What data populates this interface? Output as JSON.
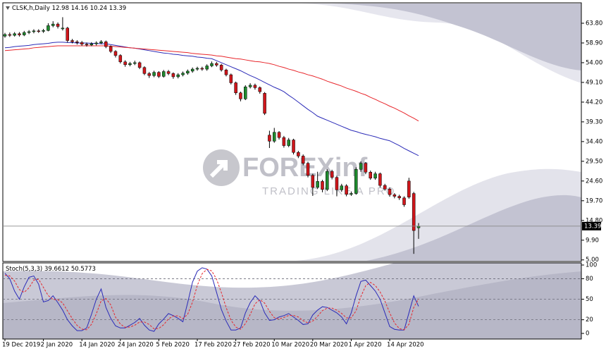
{
  "header": {
    "symbol": "CLSK,h,Daily"
  },
  "watermark": {
    "brand": "FOREXinf",
    "tagline": "TRADING LIKE A PRO"
  },
  "chart_data": [
    {
      "type": "candlestick",
      "up_color": "#1f8a2e",
      "down_color": "#d0161b",
      "categories": [
        "19 Dec 2019",
        null,
        null,
        null,
        null,
        null,
        null,
        null,
        "2 Jan 2020",
        null,
        null,
        null,
        null,
        null,
        null,
        null,
        "14 Jan 2020",
        null,
        null,
        null,
        null,
        null,
        null,
        null,
        "24 Jan 2020",
        null,
        null,
        null,
        null,
        null,
        null,
        null,
        "5 Feb 2020",
        null,
        null,
        null,
        null,
        null,
        null,
        null,
        "17 Feb 2020",
        null,
        null,
        null,
        null,
        null,
        null,
        null,
        "27 Feb 2020",
        null,
        null,
        null,
        null,
        null,
        null,
        null,
        "10 Mar 2020",
        null,
        null,
        null,
        null,
        null,
        null,
        null,
        "20 Mar 2020",
        null,
        null,
        null,
        null,
        null,
        null,
        null,
        "1 Apr 2020",
        null,
        null,
        null,
        null,
        null,
        null,
        null,
        "14 Apr 2020",
        null,
        null,
        null,
        null,
        null,
        null
      ],
      "ohlc": [
        [
          60.6,
          61.4,
          60.2,
          61.0
        ],
        [
          61.0,
          61.5,
          60.4,
          60.8
        ],
        [
          60.8,
          61.6,
          60.5,
          61.2
        ],
        [
          61.2,
          61.6,
          60.5,
          60.9
        ],
        [
          60.9,
          61.9,
          60.6,
          61.5
        ],
        [
          61.5,
          62.1,
          61.1,
          61.7
        ],
        [
          61.7,
          62.3,
          61.3,
          61.9
        ],
        [
          61.9,
          62.3,
          61.4,
          61.8
        ],
        [
          61.8,
          62.4,
          61.4,
          62.0
        ],
        [
          62.0,
          63.8,
          61.8,
          63.2
        ],
        [
          63.2,
          64.3,
          62.8,
          63.6
        ],
        [
          63.6,
          64.0,
          62.5,
          63.0
        ],
        [
          62.4,
          65.3,
          62.0,
          62.6
        ],
        [
          62.6,
          62.9,
          59.0,
          59.5
        ],
        [
          59.5,
          59.9,
          58.8,
          59.2
        ],
        [
          59.2,
          59.6,
          58.5,
          59.0
        ],
        [
          59.0,
          59.4,
          58.2,
          58.6
        ],
        [
          58.6,
          59.0,
          58.0,
          58.4
        ],
        [
          58.4,
          59.1,
          58.1,
          58.7
        ],
        [
          58.7,
          59.3,
          58.3,
          58.9
        ],
        [
          58.9,
          59.6,
          58.6,
          59.2
        ],
        [
          59.2,
          59.5,
          57.6,
          58.0
        ],
        [
          58.0,
          58.3,
          56.4,
          56.8
        ],
        [
          56.8,
          57.1,
          55.3,
          55.8
        ],
        [
          55.8,
          56.1,
          53.8,
          54.2
        ],
        [
          54.2,
          54.6,
          53.0,
          53.5
        ],
        [
          53.5,
          54.2,
          53.1,
          53.8
        ],
        [
          53.8,
          54.5,
          53.4,
          54.0
        ],
        [
          54.0,
          54.3,
          52.4,
          52.8
        ],
        [
          52.8,
          53.1,
          50.9,
          51.3
        ],
        [
          51.3,
          51.7,
          50.2,
          50.8
        ],
        [
          50.8,
          52.0,
          50.4,
          51.6
        ],
        [
          51.6,
          51.9,
          50.2,
          50.6
        ],
        [
          50.6,
          52.2,
          50.3,
          51.8
        ],
        [
          51.8,
          52.2,
          50.9,
          51.3
        ],
        [
          51.3,
          51.6,
          50.0,
          50.5
        ],
        [
          50.5,
          51.4,
          50.1,
          51.0
        ],
        [
          51.0,
          51.8,
          50.6,
          51.4
        ],
        [
          51.4,
          52.3,
          51.0,
          51.9
        ],
        [
          51.9,
          52.8,
          51.5,
          52.4
        ],
        [
          52.4,
          53.0,
          52.0,
          52.6
        ],
        [
          52.6,
          53.0,
          52.0,
          52.4
        ],
        [
          52.4,
          53.6,
          52.0,
          53.2
        ],
        [
          53.2,
          54.3,
          52.9,
          53.8
        ],
        [
          53.8,
          54.2,
          53.0,
          53.4
        ],
        [
          53.4,
          53.7,
          51.8,
          52.2
        ],
        [
          52.2,
          52.5,
          50.6,
          51.0
        ],
        [
          51.0,
          51.3,
          48.6,
          49.0
        ],
        [
          49.0,
          49.3,
          46.0,
          46.5
        ],
        [
          46.5,
          46.8,
          44.4,
          45.0
        ],
        [
          45.0,
          48.4,
          44.7,
          48.0
        ],
        [
          48.0,
          48.9,
          47.6,
          48.4
        ],
        [
          48.4,
          48.8,
          47.3,
          47.8
        ],
        [
          47.8,
          48.1,
          46.3,
          46.8
        ],
        [
          46.4,
          46.7,
          41.0,
          41.4
        ],
        [
          36.0,
          37.1,
          32.8,
          34.5
        ],
        [
          34.5,
          37.8,
          34.1,
          36.7
        ],
        [
          36.7,
          37.0,
          34.9,
          35.4
        ],
        [
          35.4,
          35.8,
          32.9,
          33.4
        ],
        [
          33.4,
          35.3,
          33.0,
          34.8
        ],
        [
          34.8,
          35.1,
          31.2,
          31.7
        ],
        [
          31.7,
          32.1,
          30.3,
          30.8
        ],
        [
          30.8,
          31.2,
          28.5,
          29.0
        ],
        [
          29.0,
          29.4,
          25.5,
          26.0
        ],
        [
          26.0,
          26.4,
          20.9,
          23.0
        ],
        [
          23.0,
          26.9,
          22.6,
          24.5
        ],
        [
          24.5,
          24.9,
          21.8,
          22.5
        ],
        [
          22.5,
          27.5,
          22.1,
          27.0
        ],
        [
          27.0,
          27.4,
          25.0,
          25.5
        ],
        [
          25.5,
          25.9,
          20.8,
          22.4
        ],
        [
          22.4,
          23.9,
          21.9,
          23.4
        ],
        [
          23.4,
          23.8,
          20.8,
          21.3
        ],
        [
          21.3,
          22.0,
          20.9,
          21.5
        ],
        [
          21.5,
          28.0,
          21.2,
          27.5
        ],
        [
          27.5,
          29.5,
          26.9,
          29.0
        ],
        [
          29.0,
          29.3,
          26.3,
          26.8
        ],
        [
          26.8,
          27.2,
          24.9,
          25.3
        ],
        [
          25.3,
          26.9,
          24.9,
          26.4
        ],
        [
          26.4,
          26.7,
          23.0,
          23.5
        ],
        [
          23.5,
          23.9,
          22.2,
          22.6
        ],
        [
          22.6,
          23.0,
          20.7,
          21.2
        ],
        [
          21.2,
          21.6,
          20.3,
          20.8
        ],
        [
          20.8,
          21.2,
          19.9,
          20.4
        ],
        [
          20.4,
          20.8,
          18.2,
          18.7
        ],
        [
          24.6,
          25.4,
          20.2,
          20.6
        ],
        [
          21.5,
          21.9,
          6.5,
          12.3
        ],
        [
          12.98,
          14.16,
          10.24,
          13.39
        ]
      ],
      "series": [
        {
          "color": "#2b2bb8",
          "values": [
            57.7,
            57.8,
            58.0,
            58.1,
            58.2,
            58.3,
            58.5,
            58.6,
            58.7,
            58.8,
            59.0,
            59.1,
            59.1,
            59.0,
            59.0,
            58.9,
            58.9,
            58.9,
            58.8,
            58.8,
            58.7,
            58.7,
            58.5,
            58.3,
            58.1,
            57.9,
            57.7,
            57.6,
            57.4,
            57.2,
            57.0,
            56.8,
            56.6,
            56.4,
            56.3,
            56.1,
            56.0,
            55.8,
            55.7,
            55.6,
            55.4,
            55.3,
            55.1,
            55.0,
            54.5,
            54.0,
            53.5,
            53.0,
            52.5,
            52.0,
            51.4,
            50.8,
            50.3,
            49.7,
            49.1,
            48.5,
            47.9,
            47.4,
            46.8,
            45.9,
            45.1,
            44.2,
            43.3,
            42.4,
            41.6,
            40.7,
            40.2,
            39.7,
            39.2,
            38.7,
            38.2,
            37.7,
            37.2,
            36.9,
            36.5,
            36.2,
            35.9,
            35.6,
            35.2,
            34.9,
            34.6,
            34.0,
            33.4,
            32.7,
            32.1,
            31.5,
            30.9
          ]
        },
        {
          "color": "#e8262b",
          "values": [
            57.0,
            57.1,
            57.2,
            57.3,
            57.4,
            57.5,
            57.7,
            57.8,
            57.9,
            58.0,
            58.1,
            58.2,
            58.2,
            58.2,
            58.2,
            58.2,
            58.2,
            58.2,
            58.2,
            58.2,
            58.2,
            58.2,
            58.1,
            58.0,
            57.9,
            57.8,
            57.7,
            57.6,
            57.5,
            57.4,
            57.3,
            57.2,
            57.1,
            57.0,
            56.9,
            56.8,
            56.7,
            56.6,
            56.5,
            56.3,
            56.2,
            56.1,
            56.0,
            55.9,
            55.7,
            55.6,
            55.4,
            55.2,
            55.0,
            54.9,
            54.7,
            54.5,
            54.3,
            54.2,
            54.0,
            53.8,
            53.5,
            53.1,
            52.8,
            52.4,
            52.1,
            51.7,
            51.4,
            51.0,
            50.7,
            50.3,
            49.9,
            49.4,
            49.0,
            48.6,
            48.2,
            47.7,
            47.3,
            46.9,
            46.4,
            46.0,
            45.4,
            44.9,
            44.3,
            43.8,
            43.2,
            42.7,
            42.1,
            41.5,
            40.8,
            40.2,
            39.5
          ]
        }
      ],
      "ylim": [
        4.78,
        68.7
      ],
      "yticks": [
        {
          "value": 63.8,
          "label": "63.80"
        },
        {
          "value": 58.9,
          "label": "58.90"
        },
        {
          "value": 54,
          "label": "54.00"
        },
        {
          "value": 49.1,
          "label": "49.10"
        },
        {
          "value": 44.2,
          "label": "44.20"
        },
        {
          "value": 39.3,
          "label": "39.30"
        },
        {
          "value": 34.4,
          "label": "34.40"
        },
        {
          "value": 29.5,
          "label": "29.50"
        },
        {
          "value": 24.6,
          "label": "24.60"
        },
        {
          "value": 19.7,
          "label": "19.70"
        },
        {
          "value": 14.8,
          "label": "14.80"
        },
        {
          "value": 9.9,
          "label": "9.90"
        },
        {
          "value": 5,
          "label": "5.00"
        }
      ]
    },
    {
      "type": "line",
      "title": "Stoch(5,3,3)",
      "series": [
        {
          "color": "#2b2bb8",
          "style": "solid",
          "values": [
            88,
            80,
            62,
            50,
            68,
            82,
            84,
            72,
            46,
            48,
            55,
            45,
            34,
            20,
            11,
            4,
            4,
            8,
            28,
            50,
            65,
            38,
            22,
            11,
            8,
            8,
            12,
            16,
            22,
            12,
            5,
            3,
            14,
            21,
            29,
            26,
            22,
            17,
            45,
            75,
            91,
            96,
            94,
            84,
            60,
            35,
            18,
            5,
            5,
            8,
            30,
            45,
            55,
            48,
            30,
            19,
            20,
            24,
            26,
            29,
            24,
            19,
            13,
            14,
            27,
            34,
            39,
            38,
            34,
            30,
            24,
            14,
            30,
            55,
            76,
            78,
            70,
            62,
            50,
            30,
            10,
            6,
            5,
            5,
            30,
            55,
            39.6612
          ]
        },
        {
          "color": "#e8262b",
          "style": "dashed",
          "values": [
            85,
            84,
            76.7,
            64,
            60,
            66.7,
            78,
            79.3,
            67.3,
            55.3,
            49.7,
            49.3,
            44.7,
            33,
            21.7,
            11.7,
            6.3,
            5.3,
            13.3,
            28.7,
            47.7,
            51,
            41.7,
            23.7,
            13.7,
            9,
            9.3,
            12,
            16.7,
            16.7,
            13,
            6.7,
            7.3,
            12.7,
            21.3,
            25.3,
            25.7,
            21.7,
            28,
            45.7,
            70.3,
            87.3,
            93.7,
            91.3,
            79.3,
            59.7,
            37.7,
            19.3,
            9.3,
            6,
            14.3,
            27.7,
            43.3,
            49.3,
            44.3,
            32.3,
            23,
            21,
            23.3,
            26.3,
            26.3,
            24,
            18.7,
            15.3,
            18,
            25,
            33.3,
            37,
            37,
            34,
            29.3,
            22.7,
            22.7,
            33,
            53.7,
            69.7,
            74.7,
            70,
            60.7,
            47.3,
            30,
            15.3,
            7,
            5.3,
            13.3,
            38,
            50.5773
          ]
        }
      ],
      "levels": [
        80,
        50,
        20
      ],
      "ylim": [
        -8.2,
        103.1
      ],
      "yticks": [
        100,
        80,
        50,
        20,
        0
      ]
    }
  ]
}
